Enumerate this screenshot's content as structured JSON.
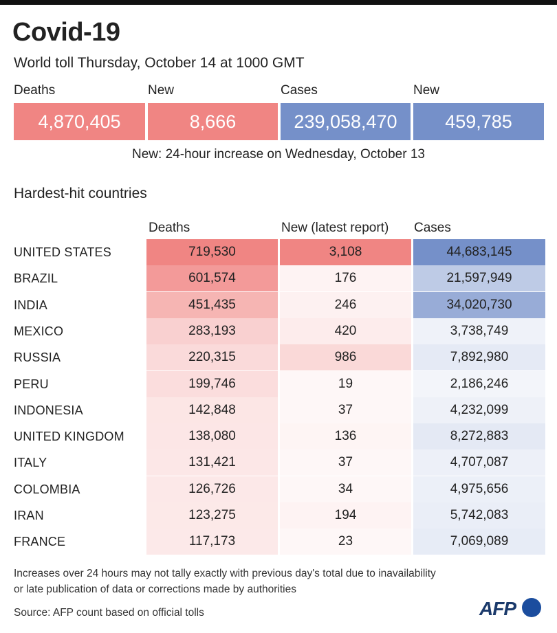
{
  "header": {
    "title": "Covid-19",
    "subtitle": "World toll Thursday, October 14 at 1000 GMT"
  },
  "totals": {
    "deaths_label": "Deaths",
    "deaths_value": "4,870,405",
    "deaths_new_label": "New",
    "deaths_new_value": "8,666",
    "cases_label": "Cases",
    "cases_value": "239,058,470",
    "cases_new_label": "New",
    "cases_new_value": "459,785",
    "note": "New: 24-hour increase on Wednesday, October 13"
  },
  "colors": {
    "deaths_accent": "#f08583",
    "cases_accent": "#7590c9"
  },
  "chart_data": {
    "type": "table",
    "title": "Hardest-hit countries",
    "columns": [
      "Deaths",
      "New (latest report)",
      "Cases"
    ],
    "rows": [
      {
        "country": "UNITED STATES",
        "deaths": "719,530",
        "new": "3,108",
        "cases": "44,683,145"
      },
      {
        "country": "BRAZIL",
        "deaths": "601,574",
        "new": "176",
        "cases": "21,597,949"
      },
      {
        "country": "INDIA",
        "deaths": "451,435",
        "new": "246",
        "cases": "34,020,730"
      },
      {
        "country": "MEXICO",
        "deaths": "283,193",
        "new": "420",
        "cases": "3,738,749"
      },
      {
        "country": "RUSSIA",
        "deaths": "220,315",
        "new": "986",
        "cases": "7,892,980"
      },
      {
        "country": "PERU",
        "deaths": "199,746",
        "new": "19",
        "cases": "2,186,246"
      },
      {
        "country": "INDONESIA",
        "deaths": "142,848",
        "new": "37",
        "cases": "4,232,099"
      },
      {
        "country": "UNITED KINGDOM",
        "deaths": "138,080",
        "new": "136",
        "cases": "8,272,883"
      },
      {
        "country": "ITALY",
        "deaths": "131,421",
        "new": "37",
        "cases": "4,707,087"
      },
      {
        "country": "COLOMBIA",
        "deaths": "126,726",
        "new": "34",
        "cases": "4,975,656"
      },
      {
        "country": "IRAN",
        "deaths": "123,275",
        "new": "194",
        "cases": "5,742,083"
      },
      {
        "country": "FRANCE",
        "deaths": "117,173",
        "new": "23",
        "cases": "7,069,089"
      }
    ]
  },
  "footer": {
    "note_line1": "Increases over 24 hours may not tally exactly with previous day's total due to inavailability",
    "note_line2": "or late publication of data or corrections made by authorities",
    "source": "Source: AFP count based on official tolls",
    "logo": "AFP"
  }
}
